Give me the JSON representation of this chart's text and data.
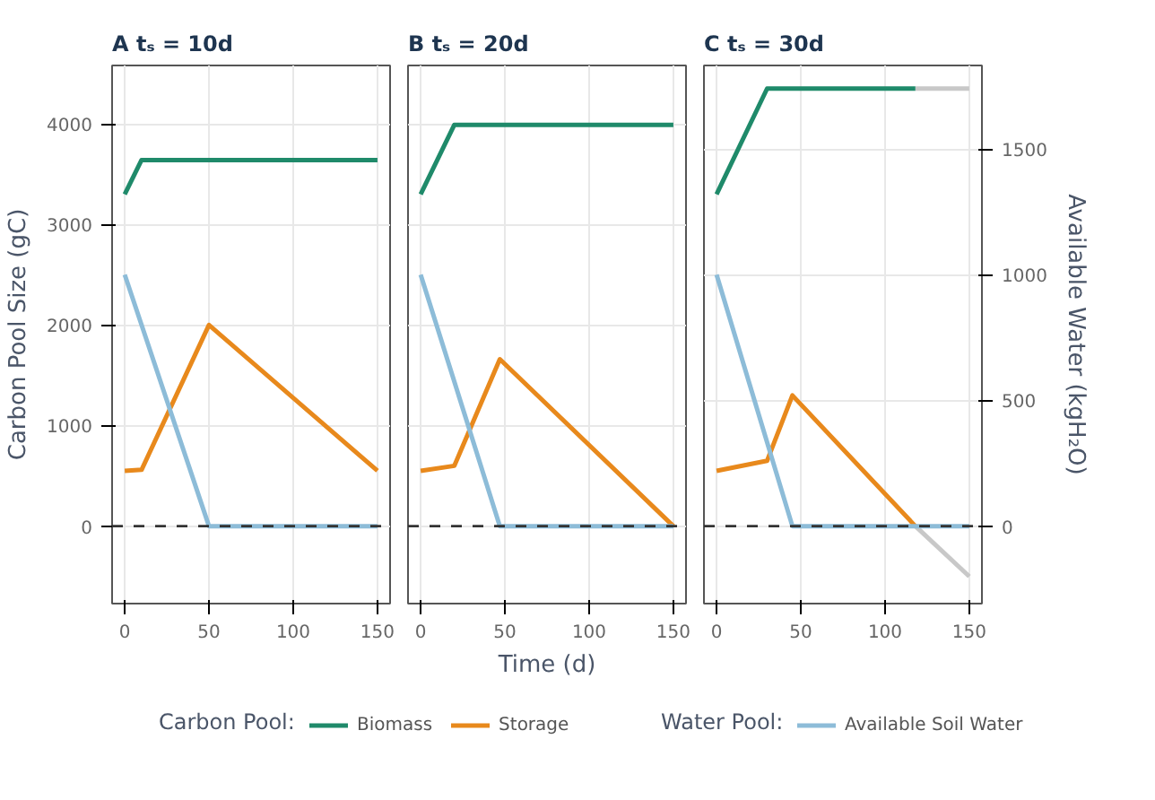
{
  "chart_data": [
    {
      "type": "line",
      "title": "A  tₛ = 10d",
      "ylabel": "Carbon Pool Size (gC)",
      "xlim": [
        -7.5,
        157.5
      ],
      "xticks": [
        0,
        50,
        100,
        150
      ],
      "ylim": [
        -770,
        4580
      ],
      "yticks": [
        0,
        1000,
        2000,
        3000,
        4000
      ],
      "y2lim": [
        -308,
        1832
      ],
      "grid": true,
      "legend": "bottom",
      "legend_title": "Carbon Pool:",
      "ref_lines": [
        {
          "axis": "y",
          "value": 0,
          "line_style": "dashed",
          "color": "#333333"
        }
      ],
      "series": [
        {
          "name": "Biomass",
          "color": "#1f8a6a",
          "x": [
            0,
            10,
            150
          ],
          "values": [
            3300,
            3640,
            3640
          ]
        },
        {
          "name": "Storage",
          "color": "#e8891c",
          "x": [
            0,
            10,
            50,
            150
          ],
          "values": [
            550,
            560,
            2000,
            550
          ]
        },
        {
          "color": "#8dbcd8",
          "axis": "y2",
          "x": [
            0,
            50,
            150
          ],
          "values": [
            1000,
            0,
            0
          ]
        }
      ]
    },
    {
      "type": "line",
      "title": "B  tₛ = 20d",
      "xlabel": "Time (d)",
      "xlim": [
        -7.5,
        157.5
      ],
      "xticks": [
        0,
        50,
        100,
        150
      ],
      "ylim": [
        -770,
        4580
      ],
      "yticks": [
        0,
        1000,
        2000,
        3000,
        4000
      ],
      "y2lim": [
        -308,
        1832
      ],
      "grid": true,
      "tick_labels": "x",
      "ref_lines": [
        {
          "axis": "y",
          "value": 0,
          "line_style": "dashed",
          "color": "#333333"
        }
      ],
      "series": [
        {
          "color": "#1f8a6a",
          "x": [
            0,
            20,
            150
          ],
          "values": [
            3300,
            3990,
            3990
          ]
        },
        {
          "color": "#e8891c",
          "x": [
            0,
            20,
            47,
            150
          ],
          "values": [
            550,
            600,
            1660,
            0
          ]
        },
        {
          "color": "#8dbcd8",
          "axis": "y2",
          "x": [
            0,
            47,
            150
          ],
          "values": [
            1000,
            0,
            0
          ]
        }
      ]
    },
    {
      "type": "line",
      "title": "C  tₛ = 30d",
      "y2label": "Available Water (kgH₂O)",
      "xlim": [
        -7.5,
        157.5
      ],
      "xticks": [
        0,
        50,
        100,
        150
      ],
      "ylim": [
        -770,
        4580
      ],
      "y2lim": [
        -308,
        1832
      ],
      "y2ticks": [
        0,
        500,
        1000,
        1500
      ],
      "grid": true,
      "legend": "bottom",
      "legend_title": "Water Pool:",
      "ref_lines": [
        {
          "axis": "y",
          "value": 0,
          "line_style": "dashed",
          "color": "#333333"
        }
      ],
      "series": [
        {
          "color": "#c8c8c8",
          "x": [
            118,
            150
          ],
          "values": [
            4350,
            4350
          ]
        },
        {
          "color": "#c8c8c8",
          "x": [
            118,
            150
          ],
          "values": [
            0,
            -500
          ]
        },
        {
          "color": "#1f8a6a",
          "x": [
            0,
            30,
            118
          ],
          "values": [
            3300,
            4350,
            4350
          ]
        },
        {
          "color": "#e8891c",
          "x": [
            0,
            30,
            45,
            118
          ],
          "values": [
            550,
            650,
            1300,
            0
          ]
        },
        {
          "name": "Available Soil Water",
          "color": "#8dbcd8",
          "axis": "y2",
          "x": [
            0,
            45,
            150
          ],
          "values": [
            1000,
            0,
            0
          ]
        }
      ]
    }
  ]
}
